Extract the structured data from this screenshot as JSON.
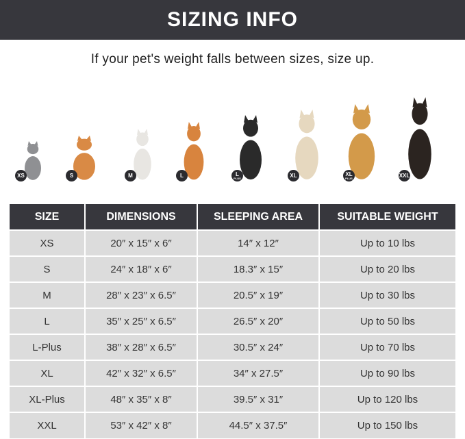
{
  "title": "SIZING INFO",
  "subtitle": "If your pet's weight falls between sizes, size up.",
  "pets": [
    {
      "badge": "XS",
      "plus": "",
      "animal": "cat",
      "color": "#8f9093"
    },
    {
      "badge": "S",
      "plus": "",
      "animal": "pomeranian",
      "color": "#d98a45"
    },
    {
      "badge": "M",
      "plus": "",
      "animal": "french-bulldog",
      "color": "#e8e6e2"
    },
    {
      "badge": "L",
      "plus": "",
      "animal": "shiba-inu",
      "color": "#d8843e"
    },
    {
      "badge": "L",
      "plus": "PLUS",
      "animal": "border-collie",
      "color": "#2a2a2a"
    },
    {
      "badge": "XL",
      "plus": "",
      "animal": "labrador",
      "color": "#e6d8bf"
    },
    {
      "badge": "XL",
      "plus": "PLUS",
      "animal": "golden-retriever",
      "color": "#d39a4a"
    },
    {
      "badge": "XXL",
      "plus": "",
      "animal": "doberman",
      "color": "#2b2420"
    }
  ],
  "table": {
    "headers": [
      "SIZE",
      "DIMENSIONS",
      "SLEEPING AREA",
      "SUITABLE WEIGHT"
    ],
    "rows": [
      [
        "XS",
        "20″ x 15″ x 6″",
        "14″ x 12″",
        "Up to 10 lbs"
      ],
      [
        "S",
        "24″ x 18″ x 6″",
        "18.3″ x 15″",
        "Up to 20 lbs"
      ],
      [
        "M",
        "28″ x 23″ x 6.5″",
        "20.5″ x 19″",
        "Up to 30 lbs"
      ],
      [
        "L",
        "35″ x 25″ x 6.5″",
        "26.5″ x 20″",
        "Up to 50 lbs"
      ],
      [
        "L-Plus",
        "38″ x 28″ x 6.5″",
        "30.5″ x 24″",
        "Up to 70 lbs"
      ],
      [
        "XL",
        "42″ x 32″ x 6.5″",
        "34″ x 27.5″",
        "Up to 90 lbs"
      ],
      [
        "XL-Plus",
        "48″ x 35″ x 8″",
        "39.5″ x 31″",
        "Up to 120 lbs"
      ],
      [
        "XXL",
        "53″ x 42″ x 8″",
        "44.5″ x 37.5″",
        "Up to 150 lbs"
      ]
    ]
  }
}
